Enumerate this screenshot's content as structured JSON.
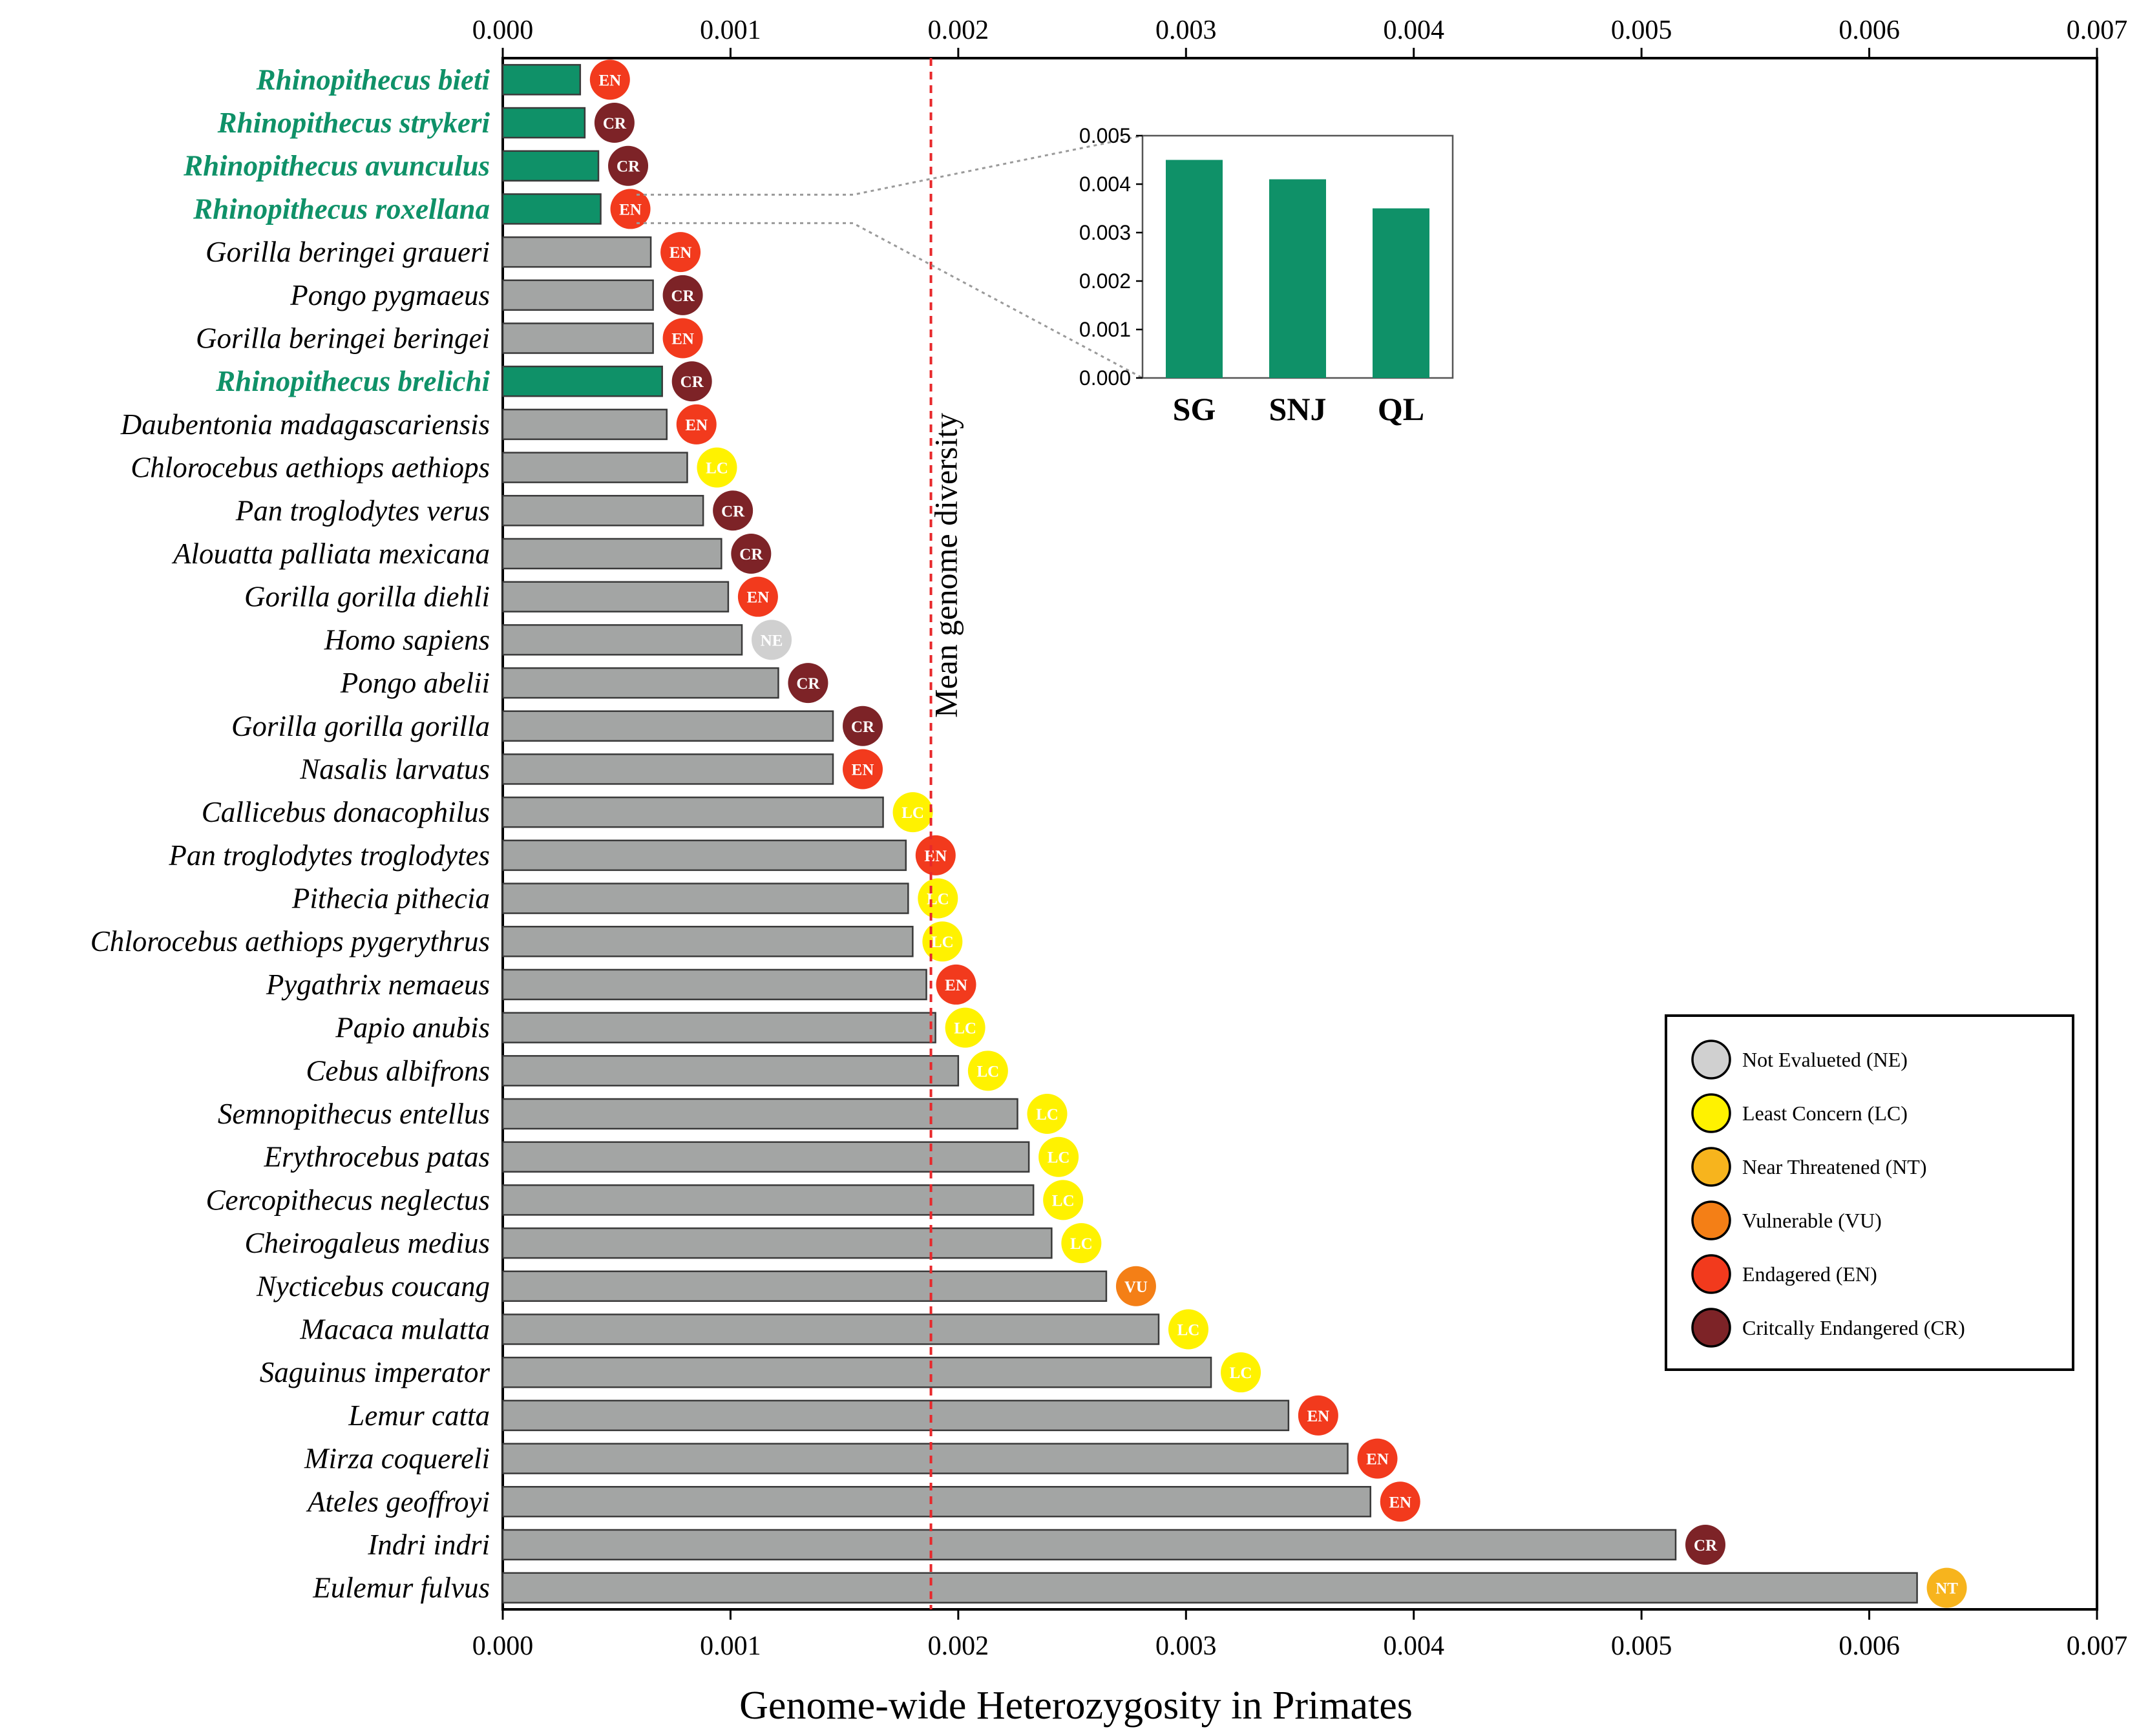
{
  "chart_data": {
    "type": "bar",
    "orientation": "horizontal",
    "xlabel": "Genome-wide Heterozygosity in Primates",
    "ylabel": "",
    "xlim": [
      0,
      0.007
    ],
    "xticks": [
      "0.000",
      "0.001",
      "0.002",
      "0.003",
      "0.004",
      "0.005",
      "0.006",
      "0.007"
    ],
    "mean_line": {
      "value": 0.00188,
      "label": "Mean genome diversity",
      "color": "#e8282b"
    },
    "colors": {
      "rhinopithecus": "#0f9168",
      "other": "#a3a5a4",
      "bar_edge": "#3a3a3a",
      "axis": "#000000"
    },
    "status_colors": {
      "NE": "#d0d0d0",
      "LC": "#fff200",
      "NT": "#f7b41d",
      "VU": "#f47f16",
      "EN": "#f23a1d",
      "CR": "#7d2327"
    },
    "series": [
      {
        "name": "Rhinopithecus bieti",
        "value": 0.00034,
        "status": "EN",
        "group": "rhinopithecus"
      },
      {
        "name": "Rhinopithecus strykeri",
        "value": 0.00036,
        "status": "CR",
        "group": "rhinopithecus"
      },
      {
        "name": "Rhinopithecus avunculus",
        "value": 0.00042,
        "status": "CR",
        "group": "rhinopithecus"
      },
      {
        "name": "Rhinopithecus roxellana",
        "value": 0.00043,
        "status": "EN",
        "group": "rhinopithecus"
      },
      {
        "name": "Gorilla beringei graueri",
        "value": 0.00065,
        "status": "EN",
        "group": "other"
      },
      {
        "name": "Pongo pygmaeus",
        "value": 0.00066,
        "status": "CR",
        "group": "other"
      },
      {
        "name": "Gorilla beringei beringei",
        "value": 0.00066,
        "status": "EN",
        "group": "other"
      },
      {
        "name": "Rhinopithecus brelichi",
        "value": 0.0007,
        "status": "CR",
        "group": "rhinopithecus"
      },
      {
        "name": "Daubentonia madagascariensis",
        "value": 0.00072,
        "status": "EN",
        "group": "other"
      },
      {
        "name": "Chlorocebus aethiops aethiops",
        "value": 0.00081,
        "status": "LC",
        "group": "other"
      },
      {
        "name": "Pan troglodytes verus",
        "value": 0.00088,
        "status": "CR",
        "group": "other"
      },
      {
        "name": "Alouatta palliata mexicana",
        "value": 0.00096,
        "status": "CR",
        "group": "other"
      },
      {
        "name": "Gorilla gorilla diehli",
        "value": 0.00099,
        "status": "EN",
        "group": "other"
      },
      {
        "name": "Homo sapiens",
        "value": 0.00105,
        "status": "NE",
        "group": "other"
      },
      {
        "name": "Pongo abelii",
        "value": 0.00121,
        "status": "CR",
        "group": "other"
      },
      {
        "name": "Gorilla gorilla gorilla",
        "value": 0.00145,
        "status": "CR",
        "group": "other"
      },
      {
        "name": "Nasalis larvatus",
        "value": 0.00145,
        "status": "EN",
        "group": "other"
      },
      {
        "name": "Callicebus donacophilus",
        "value": 0.00167,
        "status": "LC",
        "group": "other"
      },
      {
        "name": "Pan troglodytes troglodytes",
        "value": 0.00177,
        "status": "EN",
        "group": "other"
      },
      {
        "name": "Pithecia pithecia",
        "value": 0.00178,
        "status": "LC",
        "group": "other"
      },
      {
        "name": "Chlorocebus aethiops pygerythrus",
        "value": 0.0018,
        "status": "LC",
        "group": "other"
      },
      {
        "name": "Pygathrix nemaeus",
        "value": 0.00186,
        "status": "EN",
        "group": "other"
      },
      {
        "name": "Papio anubis",
        "value": 0.0019,
        "status": "LC",
        "group": "other"
      },
      {
        "name": "Cebus albifrons",
        "value": 0.002,
        "status": "LC",
        "group": "other"
      },
      {
        "name": "Semnopithecus entellus",
        "value": 0.00226,
        "status": "LC",
        "group": "other"
      },
      {
        "name": "Erythrocebus patas",
        "value": 0.00231,
        "status": "LC",
        "group": "other"
      },
      {
        "name": "Cercopithecus neglectus",
        "value": 0.00233,
        "status": "LC",
        "group": "other"
      },
      {
        "name": "Cheirogaleus medius",
        "value": 0.00241,
        "status": "LC",
        "group": "other"
      },
      {
        "name": "Nycticebus coucang",
        "value": 0.00265,
        "status": "VU",
        "group": "other"
      },
      {
        "name": "Macaca mulatta",
        "value": 0.00288,
        "status": "LC",
        "group": "other"
      },
      {
        "name": "Saguinus imperator",
        "value": 0.00311,
        "status": "LC",
        "group": "other"
      },
      {
        "name": "Lemur catta",
        "value": 0.00345,
        "status": "EN",
        "group": "other"
      },
      {
        "name": "Mirza coquereli",
        "value": 0.00371,
        "status": "EN",
        "group": "other"
      },
      {
        "name": "Ateles geoffroyi",
        "value": 0.00381,
        "status": "EN",
        "group": "other"
      },
      {
        "name": "Indri indri",
        "value": 0.00515,
        "status": "CR",
        "group": "other"
      },
      {
        "name": "Eulemur fulvus",
        "value": 0.00621,
        "status": "NT",
        "group": "other"
      }
    ],
    "legend": {
      "position": "bottom-right",
      "items": [
        {
          "code": "NE",
          "label": "Not Evalueted (NE)"
        },
        {
          "code": "LC",
          "label": "Least Concern (LC)"
        },
        {
          "code": "NT",
          "label": "Near Threatened (NT)"
        },
        {
          "code": "VU",
          "label": "Vulnerable (VU)"
        },
        {
          "code": "EN",
          "label": "Endagered (EN)"
        },
        {
          "code": "CR",
          "label": "Critcally Endangered (CR)"
        }
      ]
    },
    "inset": {
      "type": "bar",
      "zoom_of": "Rhinopithecus roxellana",
      "categories": [
        "SG",
        "SNJ",
        "QL"
      ],
      "values": [
        0.0045,
        0.0041,
        0.0035
      ],
      "ylim": [
        0,
        0.005
      ],
      "yticks": [
        "0.000",
        "0.001",
        "0.002",
        "0.003",
        "0.004",
        "0.005"
      ]
    }
  }
}
